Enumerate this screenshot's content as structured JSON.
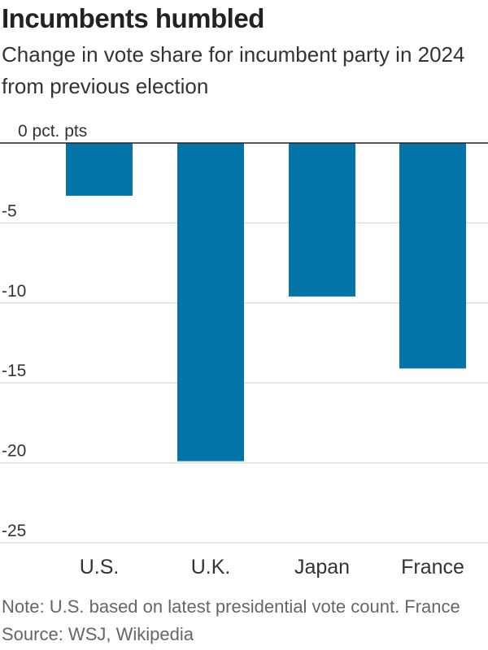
{
  "title": "Incumbents humbled",
  "subtitle": "Change in vote share for incumbent party in 2024 from previous election",
  "note": "Note: U.S. based on latest presidential vote count. France",
  "source": "Source: WSJ, Wikipedia",
  "colors": {
    "bar": "#0274a8",
    "grid": "#dddddd",
    "baseline": "#222222"
  },
  "chart_data": {
    "type": "bar",
    "categories": [
      "U.S.",
      "U.K.",
      "Japan",
      "France"
    ],
    "values": [
      -3.3,
      -19.9,
      -9.6,
      -14.1
    ],
    "ylim": [
      -25,
      0
    ],
    "yticks": [
      0,
      -5,
      -10,
      -15,
      -20,
      -25
    ],
    "ytick_labels": [
      "0 pct. pts",
      "-5",
      "-10",
      "-15",
      "-20",
      "-25"
    ],
    "grid": true
  }
}
